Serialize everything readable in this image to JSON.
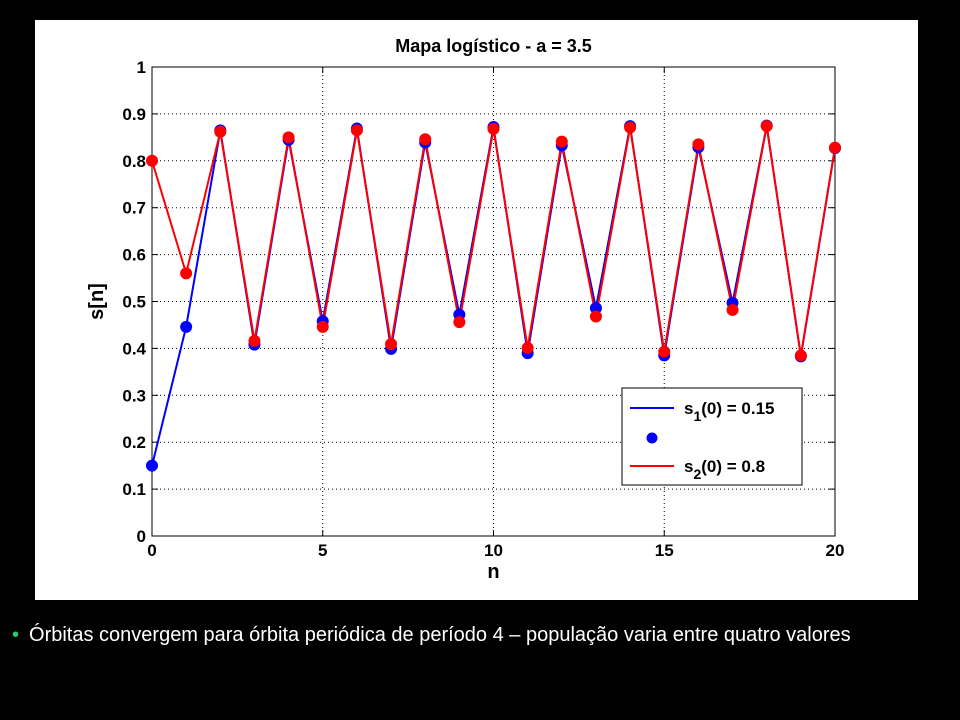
{
  "caption": {
    "bullet": "•",
    "text": "Órbitas convergem para órbita periódica de período 4 – população varia entre quatro valores"
  },
  "chart_data": {
    "type": "line",
    "title": "Mapa logístico - a = 3.5",
    "xlabel": "n",
    "ylabel": "s[n]",
    "xlim": [
      0,
      20
    ],
    "ylim": [
      0,
      1
    ],
    "xticks": [
      0,
      5,
      10,
      15,
      20
    ],
    "yticks": [
      0,
      0.1,
      0.2,
      0.3,
      0.4,
      0.5,
      0.6,
      0.7,
      0.8,
      0.9,
      1
    ],
    "grid": true,
    "legend": "lower-right",
    "x": [
      0,
      1,
      2,
      3,
      4,
      5,
      6,
      7,
      8,
      9,
      10,
      11,
      12,
      13,
      14,
      15,
      16,
      17,
      18,
      19,
      20
    ],
    "series": [
      {
        "name": "s1(0) = 0.15",
        "color": "#0000ff",
        "marker": "circle",
        "values": [
          0.15,
          0.446,
          0.865,
          0.408,
          0.845,
          0.458,
          0.869,
          0.399,
          0.839,
          0.472,
          0.872,
          0.39,
          0.833,
          0.486,
          0.874,
          0.385,
          0.829,
          0.497,
          0.875,
          0.383,
          0.827
        ]
      },
      {
        "name": "s2(0) = 0.8",
        "color": "#ff0000",
        "marker": "circle",
        "values": [
          0.8,
          0.56,
          0.862,
          0.416,
          0.85,
          0.446,
          0.865,
          0.409,
          0.846,
          0.456,
          0.868,
          0.401,
          0.841,
          0.468,
          0.871,
          0.393,
          0.835,
          0.482,
          0.874,
          0.385,
          0.828
        ]
      }
    ],
    "legend_entries": [
      {
        "main": "s",
        "sub": "1",
        "rest": "(0) = 0.15",
        "color": "#0000ff",
        "kind": "line"
      },
      {
        "main": "",
        "sub": "",
        "rest": "",
        "color": "#0000ff",
        "kind": "marker"
      },
      {
        "main": "s",
        "sub": "2",
        "rest": "(0) = 0.8",
        "color": "#ff0000",
        "kind": "line"
      }
    ]
  }
}
